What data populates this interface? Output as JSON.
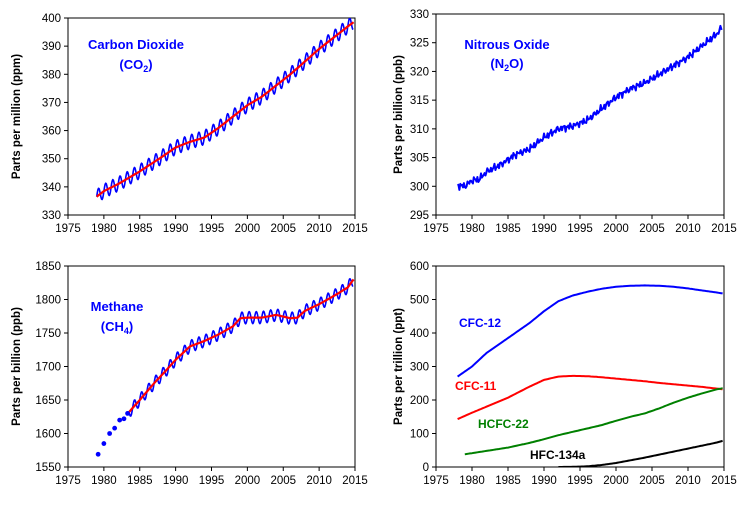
{
  "chart_data": [
    {
      "type": "line",
      "title": "Carbon Dioxide",
      "subtitle": "(CO2)",
      "subtitle_base": "(CO",
      "subtitle_sub": "2",
      "subtitle_tail": ")",
      "ylabel": "Parts per million (ppm)",
      "xlim": [
        1975,
        2015
      ],
      "ylim": [
        330,
        400
      ],
      "xticks": [
        1975,
        1980,
        1985,
        1990,
        1995,
        2000,
        2005,
        2010,
        2015
      ],
      "yticks": [
        330,
        340,
        350,
        360,
        370,
        380,
        390,
        400
      ],
      "colors": {
        "monthly": "#0000ff",
        "trend": "#ff0000",
        "title": "#0000ff"
      },
      "series": [
        {
          "style": "monthly-oscillating",
          "seasonal_amplitude": 2.5,
          "x": [
            1979,
            1980,
            1982,
            1985,
            1988,
            1990,
            1992,
            1994,
            1996,
            1998,
            2000,
            2002,
            2004,
            2006,
            2008,
            2010,
            2012,
            2014,
            2014.8
          ],
          "y": [
            336.5,
            338.5,
            341,
            345.5,
            350.5,
            354,
            356,
            357.5,
            361,
            365,
            369,
            372,
            376,
            380,
            384.5,
            389,
            393,
            397,
            398.5
          ]
        },
        {
          "style": "trend",
          "x": [
            1979,
            1980,
            1982,
            1985,
            1988,
            1990,
            1992,
            1994,
            1996,
            1998,
            2000,
            2002,
            2004,
            2006,
            2008,
            2010,
            2012,
            2014,
            2014.8
          ],
          "y": [
            336.5,
            338.5,
            341,
            345.5,
            350.5,
            354,
            356,
            357.5,
            361,
            365,
            369,
            372,
            376,
            380,
            384.5,
            389,
            393,
            397,
            398.5
          ]
        }
      ]
    },
    {
      "type": "line",
      "title": "Nitrous Oxide",
      "subtitle": "(N2O)",
      "subtitle_base": "(N",
      "subtitle_sub": "2",
      "subtitle_tail": "O)",
      "ylabel": "Parts per billion (ppb)",
      "xlim": [
        1975,
        2015
      ],
      "ylim": [
        295,
        330
      ],
      "xticks": [
        1975,
        1980,
        1985,
        1990,
        1995,
        2000,
        2005,
        2010,
        2015
      ],
      "yticks": [
        295,
        300,
        305,
        310,
        315,
        320,
        325,
        330
      ],
      "colors": {
        "line": "#0000ff",
        "title": "#0000ff"
      },
      "series": [
        {
          "style": "noisy",
          "x": [
            1978,
            1979,
            1980,
            1981,
            1982,
            1984,
            1986,
            1988,
            1990,
            1992,
            1994,
            1996,
            1998,
            2000,
            2002,
            2004,
            2006,
            2008,
            2010,
            2012,
            2014,
            2014.8
          ],
          "y": [
            300.2,
            300,
            301,
            301.2,
            302.5,
            303.8,
            305.5,
            306.5,
            308.5,
            310,
            310.5,
            311.5,
            313.5,
            315.5,
            317,
            318,
            319.5,
            321,
            322.5,
            324.5,
            326.5,
            327.8
          ]
        }
      ]
    },
    {
      "type": "line",
      "title": "Methane",
      "subtitle": "(CH4)",
      "subtitle_base": "(CH",
      "subtitle_sub": "4",
      "subtitle_tail": ")",
      "ylabel": "Parts per billion (ppb)",
      "xlim": [
        1975,
        2015
      ],
      "ylim": [
        1550,
        1850
      ],
      "xticks": [
        1975,
        1980,
        1985,
        1990,
        1995,
        2000,
        2005,
        2010,
        2015
      ],
      "yticks": [
        1550,
        1600,
        1650,
        1700,
        1750,
        1800,
        1850
      ],
      "colors": {
        "points": "#0000ff",
        "monthly": "#0000ff",
        "trend": "#ff0000",
        "title": "#0000ff"
      },
      "points": {
        "x": [
          1979.2,
          1980,
          1980.8,
          1981.5,
          1982.2,
          1982.8,
          1983.3
        ],
        "y": [
          1569,
          1585,
          1600,
          1608,
          1620,
          1622,
          1630
        ]
      },
      "series": [
        {
          "style": "monthly-oscillating",
          "seasonal_amplitude": 9,
          "x": [
            1983.5,
            1985,
            1987,
            1989,
            1990,
            1992,
            1994,
            1996,
            1998,
            1999,
            2000,
            2002,
            2004,
            2006,
            2007,
            2008,
            2010,
            2012,
            2014,
            2014.8
          ],
          "y": [
            1632,
            1650,
            1675,
            1698,
            1710,
            1730,
            1738,
            1748,
            1760,
            1772,
            1773,
            1773,
            1777,
            1772,
            1773,
            1783,
            1793,
            1805,
            1818,
            1830
          ]
        },
        {
          "style": "trend",
          "x": [
            1983.5,
            1985,
            1987,
            1989,
            1990,
            1992,
            1994,
            1996,
            1998,
            1999,
            2000,
            2002,
            2004,
            2006,
            2007,
            2008,
            2010,
            2012,
            2014,
            2014.8
          ],
          "y": [
            1632,
            1650,
            1675,
            1698,
            1710,
            1730,
            1738,
            1748,
            1760,
            1772,
            1773,
            1773,
            1777,
            1772,
            1773,
            1783,
            1793,
            1805,
            1818,
            1830
          ]
        }
      ]
    },
    {
      "type": "line",
      "title": "",
      "ylabel": "Parts per trillion (ppt)",
      "xlim": [
        1975,
        2015
      ],
      "ylim": [
        0,
        600
      ],
      "xticks": [
        1975,
        1980,
        1985,
        1990,
        1995,
        2000,
        2005,
        2010,
        2015
      ],
      "yticks": [
        0,
        100,
        200,
        300,
        400,
        500,
        600
      ],
      "series": [
        {
          "name": "CFC-12",
          "color": "#0000ff",
          "x": [
            1978,
            1980,
            1982,
            1985,
            1988,
            1990,
            1992,
            1994,
            1996,
            1998,
            2000,
            2002,
            2004,
            2006,
            2008,
            2010,
            2012,
            2014,
            2014.8
          ],
          "y": [
            270,
            300,
            340,
            385,
            430,
            465,
            495,
            512,
            523,
            532,
            538,
            541,
            542,
            541,
            538,
            533,
            527,
            521,
            518
          ]
        },
        {
          "name": "CFC-11",
          "color": "#ff0000",
          "x": [
            1978,
            1980,
            1982,
            1985,
            1988,
            1990,
            1992,
            1994,
            1996,
            1998,
            2000,
            2002,
            2004,
            2006,
            2008,
            2010,
            2012,
            2014,
            2014.8
          ],
          "y": [
            143,
            162,
            180,
            207,
            240,
            260,
            270,
            272,
            271,
            268,
            264,
            260,
            256,
            251,
            247,
            243,
            239,
            234,
            232
          ]
        },
        {
          "name": "HCFC-22",
          "color": "#008000",
          "x": [
            1979,
            1982,
            1985,
            1988,
            1990,
            1992,
            1994,
            1996,
            1998,
            2000,
            2002,
            2004,
            2006,
            2008,
            2010,
            2012,
            2014,
            2014.8
          ],
          "y": [
            38,
            48,
            58,
            72,
            83,
            95,
            105,
            115,
            125,
            138,
            150,
            160,
            175,
            192,
            207,
            220,
            232,
            235
          ]
        },
        {
          "name": "HFC-134a",
          "color": "#000000",
          "x": [
            1992,
            1994,
            1996,
            1998,
            2000,
            2002,
            2004,
            2006,
            2008,
            2010,
            2012,
            2014,
            2014.8
          ],
          "y": [
            0,
            0.5,
            2,
            6,
            12,
            20,
            28,
            37,
            46,
            55,
            64,
            73,
            78
          ]
        }
      ]
    }
  ]
}
